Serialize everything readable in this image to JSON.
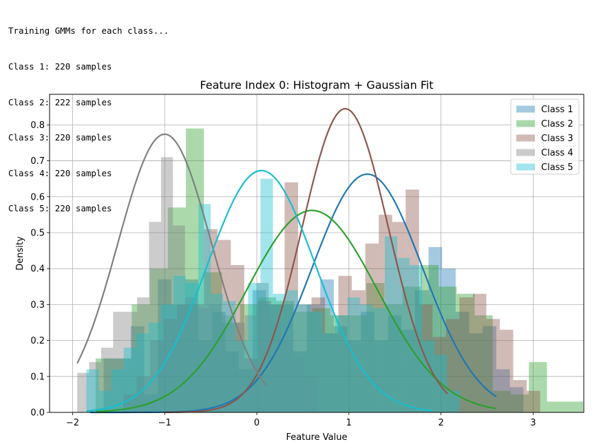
{
  "console": {
    "lines": [
      "Training GMMs for each class...",
      "Class 1: 220 samples",
      "Class 2: 222 samples",
      "Class 3: 220 samples",
      "Class 4: 220 samples",
      "Class 5: 220 samples"
    ]
  },
  "chart_data": {
    "type": "histogram",
    "title": "Feature Index 0: Histogram + Gaussian Fit",
    "xlabel": "Feature Value",
    "ylabel": "Density",
    "xlim": [
      -2.25,
      3.55
    ],
    "ylim": [
      0,
      0.885
    ],
    "xticks": [
      -2,
      -1,
      0,
      1,
      2,
      3
    ],
    "xtick_labels": [
      "−2",
      "−1",
      "0",
      "1",
      "2",
      "3"
    ],
    "yticks": [
      0.0,
      0.1,
      0.2,
      0.3,
      0.4,
      0.5,
      0.6,
      0.7,
      0.8
    ],
    "ytick_labels": [
      "0.0",
      "0.1",
      "0.2",
      "0.3",
      "0.4",
      "0.5",
      "0.6",
      "0.7",
      "0.8"
    ],
    "grid": true,
    "legend_position": "upper-right",
    "series": [
      {
        "name": "Class 1",
        "color": "#1f77b4",
        "gaussian": {
          "mean": 1.2,
          "std": 0.6,
          "peak": 0.663,
          "x_range": [
            -1.81,
            2.6
          ]
        },
        "hist": {
          "start": -1.81,
          "width": 0.147,
          "heights": [
            0.0,
            0.15,
            0.15,
            0.24,
            0.05,
            0.37,
            0.3,
            0.37,
            0.2,
            0.28,
            0.17,
            0.12,
            0.34,
            0.3,
            0.3,
            0.17,
            0.3,
            0.37,
            0.24,
            0.2,
            0.28,
            0.2,
            0.27,
            0.23,
            0.34,
            0.46,
            0.4,
            0.28,
            0.22,
            0.24,
            0.12,
            0.07
          ]
        }
      },
      {
        "name": "Class 2",
        "color": "#2ca02c",
        "gaussian": {
          "mean": 0.6,
          "std": 0.71,
          "peak": 0.562,
          "x_range": [
            -1.75,
            2.6
          ]
        },
        "hist": {
          "start": -1.75,
          "width": 0.196,
          "heights": [
            0.15,
            0.15,
            0.3,
            0.4,
            0.57,
            0.79,
            0.39,
            0.25,
            0.3,
            0.32,
            0.31,
            0.28,
            0.29,
            0.27,
            0.27,
            0.36,
            0.3,
            0.35,
            0.41,
            0.35,
            0.33,
            0.27,
            0.06,
            0.05,
            0.14,
            0.03,
            0.03
          ]
        }
      },
      {
        "name": "Class 3",
        "color": "#8c564b",
        "gaussian": {
          "mean": 0.96,
          "std": 0.47,
          "peak": 0.845,
          "x_range": [
            -1.0,
            2.07
          ]
        },
        "hist": {
          "start": -1.45,
          "width": 0.146,
          "heights": [
            0.05,
            0.1,
            0.2,
            0.26,
            0.3,
            0.3,
            0.51,
            0.48,
            0.41,
            0.15,
            0.31,
            0.3,
            0.64,
            0.3,
            0.32,
            0.22,
            0.38,
            0.34,
            0.47,
            0.55,
            0.53,
            0.62,
            0.3,
            0.21,
            0.26,
            0.32,
            0.33,
            0.26,
            0.23,
            0.09,
            0.06
          ]
        }
      },
      {
        "name": "Class 4",
        "color": "#7f7f7f",
        "gaussian": {
          "mean": -1.0,
          "std": 0.51,
          "peak": 0.774,
          "x_range": [
            -1.95,
            0.1
          ]
        },
        "hist": {
          "start": -1.95,
          "width": 0.13,
          "heights": [
            0.11,
            0.14,
            0.18,
            0.28,
            0.28,
            0.32,
            0.53,
            0.71,
            0.52,
            0.32,
            0.29,
            0.3,
            0.27,
            0.25,
            0.27,
            0.36,
            0.25,
            0.2,
            0.15,
            0.1
          ]
        }
      },
      {
        "name": "Class 5",
        "color": "#17becf",
        "gaussian": {
          "mean": 0.05,
          "std": 0.59,
          "peak": 0.673,
          "x_range": [
            -1.85,
            1.9
          ]
        },
        "hist": {
          "start": -1.85,
          "width": 0.135,
          "heights": [
            0.12,
            0.06,
            0.12,
            0.18,
            0.22,
            0.25,
            0.3,
            0.38,
            0.36,
            0.58,
            0.33,
            0.31,
            0.2,
            0.36,
            0.65,
            0.33,
            0.34,
            0.3,
            0.28,
            0.22,
            0.27,
            0.32,
            0.3,
            0.29,
            0.49,
            0.43,
            0.41,
            0.2,
            0.16,
            0.06
          ]
        }
      }
    ]
  }
}
